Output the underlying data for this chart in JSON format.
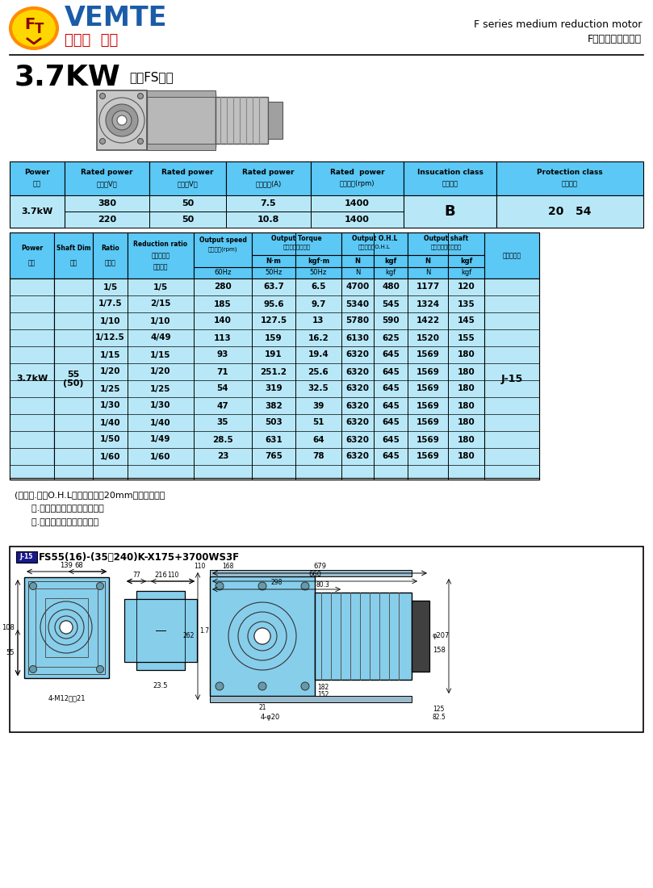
{
  "header_right_line1": "F series medium reduction motor",
  "header_right_line2": "F系列中型減速電機",
  "title_power": "3.7KW",
  "title_series": "中空FS系列",
  "table_header_bg": "#5bc8f5",
  "table_row_bg": "#b8e8f8",
  "top_headers": [
    "Power\n功率",
    "Rated power\n電壓（V）",
    "Rated power\n頻率（V）",
    "Rated power\n額定電流(A)",
    "Rated  power\n額定轉速(rpm)",
    "Insucation class\n絕緣等級",
    "Protection class\n防護等級"
  ],
  "top_row1": [
    "3.7kW",
    "380",
    "50",
    "7.5",
    "1400",
    "B",
    "20  54"
  ],
  "top_row2": [
    "",
    "220",
    "50",
    "10.8",
    "1400",
    "",
    ""
  ],
  "data_rows": [
    [
      "1/5",
      "1/5",
      "280",
      "63.7",
      "6.5",
      "4700",
      "480",
      "1177",
      "120"
    ],
    [
      "1/7.5",
      "2/15",
      "185",
      "95.6",
      "9.7",
      "5340",
      "545",
      "1324",
      "135"
    ],
    [
      "1/10",
      "1/10",
      "140",
      "127.5",
      "13",
      "5780",
      "590",
      "1422",
      "145"
    ],
    [
      "1/12.5",
      "4/49",
      "113",
      "159",
      "16.2",
      "6130",
      "625",
      "1520",
      "155"
    ],
    [
      "1/15",
      "1/15",
      "93",
      "191",
      "19.4",
      "6320",
      "645",
      "1569",
      "180"
    ],
    [
      "1/20",
      "1/20",
      "71",
      "251.2",
      "25.6",
      "6320",
      "645",
      "1569",
      "180"
    ],
    [
      "1/25",
      "1/25",
      "54",
      "319",
      "32.5",
      "6320",
      "645",
      "1569",
      "180"
    ],
    [
      "1/30",
      "1/30",
      "47",
      "382",
      "39",
      "6320",
      "645",
      "1569",
      "180"
    ],
    [
      "1/40",
      "1/40",
      "35",
      "503",
      "51",
      "6320",
      "645",
      "1569",
      "180"
    ],
    [
      "1/50",
      "1/49",
      "28.5",
      "631",
      "64",
      "6320",
      "645",
      "1569",
      "180"
    ],
    [
      "1/60",
      "1/60",
      "23",
      "765",
      "78",
      "6320",
      "645",
      "1569",
      "180"
    ]
  ],
  "power_cell": "3.7kW",
  "shaft_cell": "55\n(50)",
  "dim_label": "J-15",
  "note_lines": [
    "(注）１.容許O.H.L為輸出軸端面20mm位置的數値。",
    "      ２.米標記為轉矩力變限機型。",
    "      ３.括號（）為實心軸軸徑。"
  ],
  "diag_title_prefix": "J-15",
  "diag_title_rest": "FS55(16)-(35～240)K-X175+3700WS3F"
}
